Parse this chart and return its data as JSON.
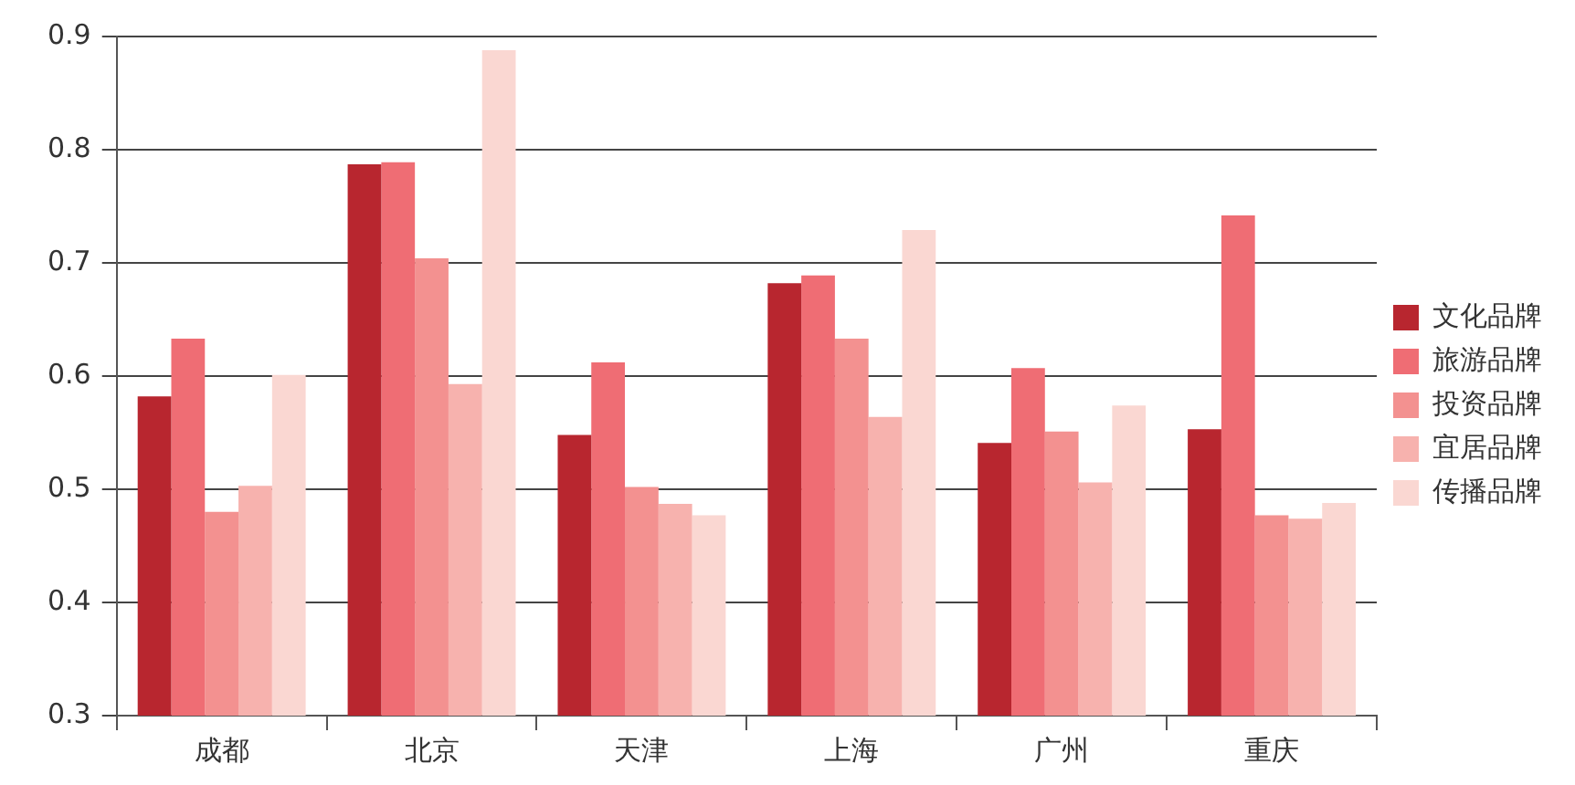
{
  "chart_data": {
    "type": "bar",
    "categories": [
      "成都",
      "北京",
      "天津",
      "上海",
      "广州",
      "重庆"
    ],
    "series": [
      {
        "name": "文化品牌",
        "color": "#b8262f",
        "values": [
          0.582,
          0.787,
          0.548,
          0.682,
          0.541,
          0.553
        ]
      },
      {
        "name": "旅游品牌",
        "color": "#ef6d74",
        "values": [
          0.633,
          0.789,
          0.612,
          0.689,
          0.607,
          0.742
        ]
      },
      {
        "name": "投资品牌",
        "color": "#f39190",
        "values": [
          0.48,
          0.704,
          0.502,
          0.633,
          0.551,
          0.477
        ]
      },
      {
        "name": "宜居品牌",
        "color": "#f7b2ae",
        "values": [
          0.503,
          0.593,
          0.487,
          0.564,
          0.506,
          0.474
        ]
      },
      {
        "name": "传播品牌",
        "color": "#fad7d2",
        "values": [
          0.601,
          0.888,
          0.477,
          0.729,
          0.574,
          0.488
        ]
      }
    ],
    "ylim": [
      0.3,
      0.9
    ],
    "yticks": [
      0.3,
      0.4,
      0.5,
      0.6,
      0.7,
      0.8,
      0.9
    ],
    "grid": "y",
    "legend": "right"
  }
}
